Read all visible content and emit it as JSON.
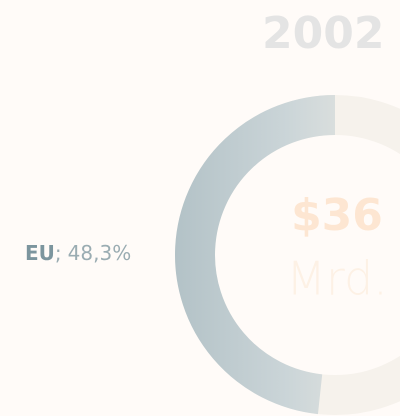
{
  "chart_data": {
    "type": "donut",
    "title": "2002",
    "center_value": "$36",
    "center_unit": "Mrd.",
    "categories": [
      "EU"
    ],
    "values": [
      48.3
    ],
    "value_labels": [
      "48,3%"
    ],
    "separator": ";",
    "colors": [
      "#b3c2c7"
    ]
  }
}
